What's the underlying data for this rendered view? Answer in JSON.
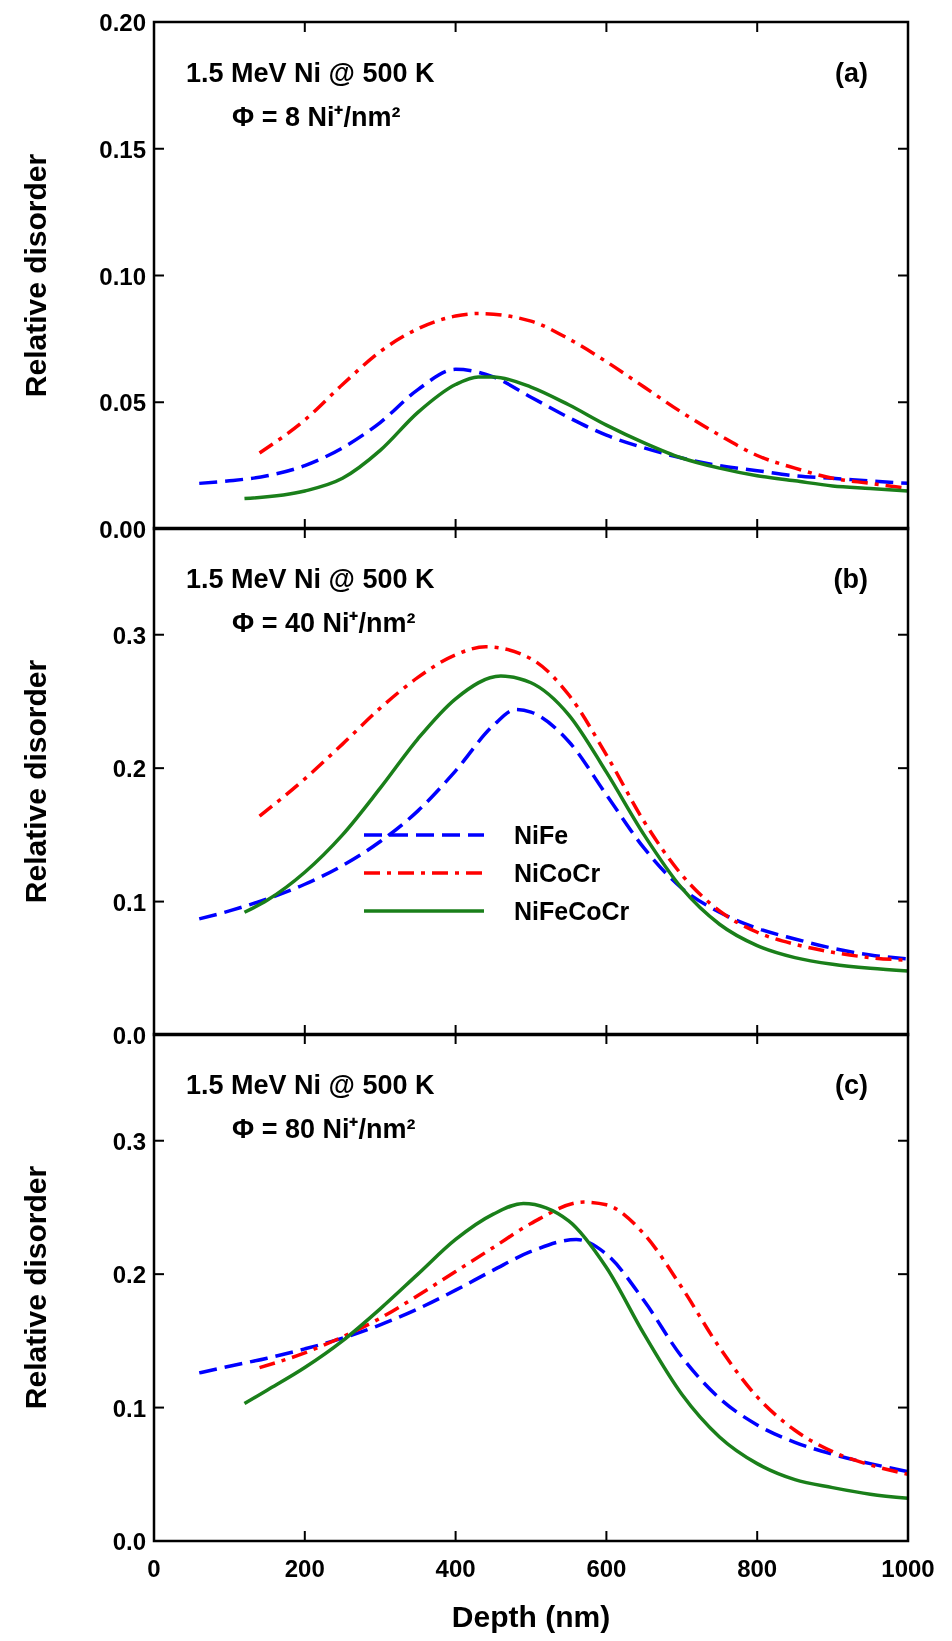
{
  "chart_data": [
    {
      "type": "line",
      "ylabel": "Relative disorder",
      "annotations": [
        "1.5 MeV Ni @ 500 K",
        "Φ = 8 Ni⁺/nm²",
        "(a)"
      ],
      "xlim": [
        0,
        1000
      ],
      "xticks": [
        0,
        200,
        400,
        600,
        800,
        1000
      ],
      "ylim": [
        0,
        0.2
      ],
      "yticks": [
        {
          "value": 0,
          "label": "0.00"
        },
        {
          "value": 0.05,
          "label": "0.05"
        },
        {
          "value": 0.1,
          "label": "0.10"
        },
        {
          "value": 0.15,
          "label": "0.15"
        },
        {
          "value": 0.2,
          "label": "0.20"
        }
      ],
      "tick_labels": "y",
      "legend": false,
      "series": [
        {
          "color": "#0000ff",
          "line_style": "dashed",
          "x": [
            60,
            100,
            150,
            200,
            250,
            300,
            350,
            400,
            450,
            500,
            550,
            600,
            650,
            700,
            750,
            800,
            850,
            900,
            950,
            1000
          ],
          "values": [
            0.018,
            0.019,
            0.021,
            0.025,
            0.032,
            0.042,
            0.055,
            0.063,
            0.06,
            0.052,
            0.044,
            0.037,
            0.032,
            0.028,
            0.025,
            0.023,
            0.021,
            0.02,
            0.019,
            0.018
          ]
        },
        {
          "color": "#ff0000",
          "line_style": "dashdot",
          "x": [
            140,
            200,
            250,
            300,
            350,
            400,
            430,
            500,
            550,
            600,
            650,
            700,
            750,
            800,
            850,
            900,
            950,
            1000
          ],
          "values": [
            0.03,
            0.043,
            0.057,
            0.07,
            0.079,
            0.084,
            0.085,
            0.082,
            0.075,
            0.066,
            0.056,
            0.046,
            0.037,
            0.029,
            0.024,
            0.02,
            0.018,
            0.016
          ]
        },
        {
          "color": "#1a7f1a",
          "line_style": "solid",
          "x": [
            120,
            200,
            250,
            300,
            350,
            400,
            430,
            450,
            500,
            550,
            600,
            650,
            700,
            750,
            800,
            850,
            900,
            950,
            1000
          ],
          "values": [
            0.012,
            0.015,
            0.02,
            0.031,
            0.046,
            0.057,
            0.06,
            0.06,
            0.056,
            0.049,
            0.041,
            0.034,
            0.028,
            0.024,
            0.021,
            0.019,
            0.017,
            0.016,
            0.015
          ]
        }
      ]
    },
    {
      "type": "line",
      "ylabel": "Relative disorder",
      "annotations": [
        "1.5 MeV Ni @ 500 K",
        "Φ = 40 Ni⁺/nm²",
        "(b)"
      ],
      "xlim": [
        0,
        1000
      ],
      "xticks": [
        0,
        200,
        400,
        600,
        800,
        1000
      ],
      "ylim": [
        0,
        0.38
      ],
      "yticks": [
        {
          "value": 0,
          "label": "0.0"
        },
        0.1,
        0.2,
        0.3
      ],
      "tick_labels": "y",
      "legend": "bottom",
      "series": [
        {
          "name": "NiFe",
          "color": "#0000ff",
          "line_style": "dashed",
          "x": [
            60,
            100,
            150,
            200,
            250,
            300,
            350,
            400,
            450,
            480,
            500,
            550,
            600,
            650,
            700,
            750,
            800,
            850,
            900,
            950,
            1000
          ],
          "values": [
            0.087,
            0.093,
            0.102,
            0.113,
            0.127,
            0.145,
            0.168,
            0.198,
            0.232,
            0.244,
            0.242,
            0.22,
            0.18,
            0.14,
            0.11,
            0.092,
            0.08,
            0.072,
            0.065,
            0.06,
            0.057
          ]
        },
        {
          "name": "NiCoCr",
          "color": "#ff0000",
          "line_style": "dashdot",
          "x": [
            140,
            200,
            250,
            300,
            350,
            400,
            440,
            500,
            550,
            600,
            650,
            700,
            750,
            800,
            850,
            900,
            950,
            1000
          ],
          "values": [
            0.164,
            0.192,
            0.218,
            0.245,
            0.268,
            0.285,
            0.291,
            0.282,
            0.255,
            0.21,
            0.16,
            0.12,
            0.093,
            0.077,
            0.068,
            0.062,
            0.058,
            0.056
          ]
        },
        {
          "name": "NiFeCoCr",
          "color": "#1a7f1a",
          "line_style": "solid",
          "x": [
            120,
            150,
            200,
            250,
            300,
            350,
            400,
            460,
            500,
            550,
            600,
            650,
            700,
            750,
            800,
            850,
            900,
            950,
            1000
          ],
          "values": [
            0.092,
            0.101,
            0.122,
            0.15,
            0.185,
            0.222,
            0.252,
            0.269,
            0.264,
            0.24,
            0.197,
            0.15,
            0.11,
            0.083,
            0.067,
            0.058,
            0.053,
            0.05,
            0.048
          ]
        }
      ]
    },
    {
      "type": "line",
      "xlabel": "Depth (nm)",
      "ylabel": "Relative disorder",
      "annotations": [
        "1.5 MeV Ni @ 500 K",
        "Φ = 80 Ni⁺/nm²",
        "(c)"
      ],
      "xlim": [
        0,
        1000
      ],
      "xticks": [
        0,
        200,
        400,
        600,
        800,
        1000
      ],
      "ylim": [
        0,
        0.38
      ],
      "yticks": [
        {
          "value": 0,
          "label": "0.0"
        },
        0.1,
        0.2,
        0.3
      ],
      "legend": false,
      "series": [
        {
          "color": "#0000ff",
          "line_style": "dashed",
          "x": [
            60,
            100,
            150,
            200,
            250,
            300,
            350,
            400,
            450,
            500,
            560,
            600,
            650,
            700,
            750,
            800,
            850,
            900,
            950,
            1000
          ],
          "values": [
            0.126,
            0.131,
            0.137,
            0.144,
            0.152,
            0.162,
            0.174,
            0.188,
            0.203,
            0.217,
            0.226,
            0.215,
            0.18,
            0.138,
            0.107,
            0.087,
            0.074,
            0.065,
            0.058,
            0.052
          ]
        },
        {
          "color": "#ff0000",
          "line_style": "dashdot",
          "x": [
            140,
            200,
            250,
            300,
            350,
            400,
            450,
            500,
            570,
            600,
            650,
            700,
            750,
            800,
            850,
            900,
            950,
            1000
          ],
          "values": [
            0.13,
            0.141,
            0.153,
            0.167,
            0.184,
            0.202,
            0.22,
            0.238,
            0.254,
            0.252,
            0.23,
            0.19,
            0.145,
            0.108,
            0.083,
            0.067,
            0.057,
            0.05
          ]
        },
        {
          "color": "#1a7f1a",
          "line_style": "solid",
          "x": [
            120,
            150,
            200,
            250,
            300,
            350,
            400,
            450,
            490,
            550,
            600,
            650,
            700,
            750,
            800,
            850,
            900,
            950,
            1000
          ],
          "values": [
            0.103,
            0.113,
            0.13,
            0.15,
            0.174,
            0.2,
            0.226,
            0.245,
            0.253,
            0.24,
            0.205,
            0.155,
            0.11,
            0.078,
            0.058,
            0.046,
            0.04,
            0.035,
            0.032
          ]
        }
      ]
    }
  ]
}
